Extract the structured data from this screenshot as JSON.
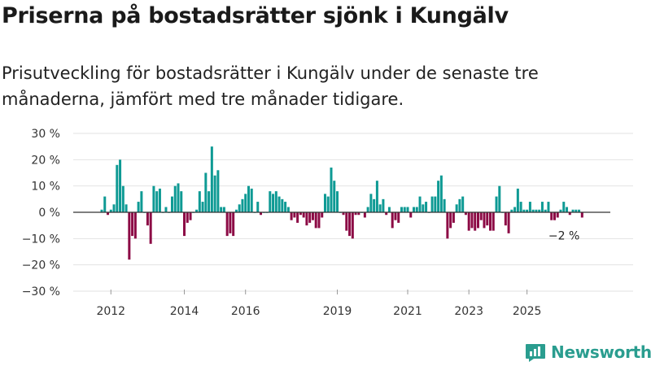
{
  "header": {
    "title": "Priserna på bostadsrätter sjönk i Kungälv",
    "subtitle": "Prisutveckling för bostadsrätter i Kungälv under de senaste tre månaderna, jämfört med tre månader tidigare."
  },
  "brand": {
    "name": "Newsworthy",
    "icon": "newsworthy-logo-icon"
  },
  "colors": {
    "positive": "#0e9a94",
    "negative": "#8c0a45",
    "grid": "#e2e2e2",
    "zero_line": "#333333"
  },
  "chart_data": {
    "type": "bar",
    "ylim": [
      -30,
      30
    ],
    "y_ticks": [
      30,
      20,
      10,
      0,
      -10,
      -20,
      -30
    ],
    "y_tick_labels": [
      "30 %",
      "20 %",
      "10 %",
      "0 %",
      "−10 %",
      "−20 %",
      "−30 %"
    ],
    "x_tick_labels": [
      "2012",
      "2014",
      "2016",
      "2019",
      "2021",
      "2023",
      "2025"
    ],
    "x_tick_index": [
      3,
      27,
      47,
      77,
      100,
      120,
      139
    ],
    "start_label": "2012-02",
    "annotation": "−2 %",
    "values": [
      1,
      6,
      -1,
      1,
      3,
      18,
      20,
      10,
      3,
      -18,
      -9,
      -10,
      4,
      8,
      0,
      -5,
      -12,
      10,
      8,
      9,
      0,
      2,
      0,
      6,
      10,
      11,
      8,
      -9,
      -4,
      -3,
      0,
      1,
      8,
      4,
      15,
      8,
      25,
      14,
      16,
      2,
      2,
      -9,
      -8,
      -9,
      1,
      3,
      5,
      7,
      10,
      9,
      0,
      4,
      -1,
      0,
      0,
      8,
      7,
      8,
      6,
      5,
      4,
      2,
      -3,
      -2,
      -4,
      -1,
      -2,
      -5,
      -4,
      -3,
      -6,
      -6,
      -2,
      7,
      6,
      17,
      12,
      8,
      0,
      -1,
      -7,
      -9,
      -10,
      -1,
      -1,
      0,
      -2,
      2,
      7,
      5,
      12,
      3,
      5,
      -1,
      2,
      -6,
      -3,
      -4,
      2,
      2,
      2,
      -2,
      2,
      2,
      6,
      3,
      4,
      0,
      6,
      6,
      12,
      14,
      5,
      -10,
      -6,
      -4,
      3,
      5,
      6,
      -1,
      -7,
      -6,
      -7,
      -6,
      -3,
      -6,
      -5,
      -7,
      -7,
      6,
      10,
      0,
      -5,
      -8,
      1,
      2,
      9,
      4,
      1,
      1,
      4,
      1,
      1,
      1,
      4,
      1,
      4,
      -3,
      -3,
      -2,
      1,
      4,
      2,
      -1,
      1,
      1,
      1,
      -2
    ]
  }
}
